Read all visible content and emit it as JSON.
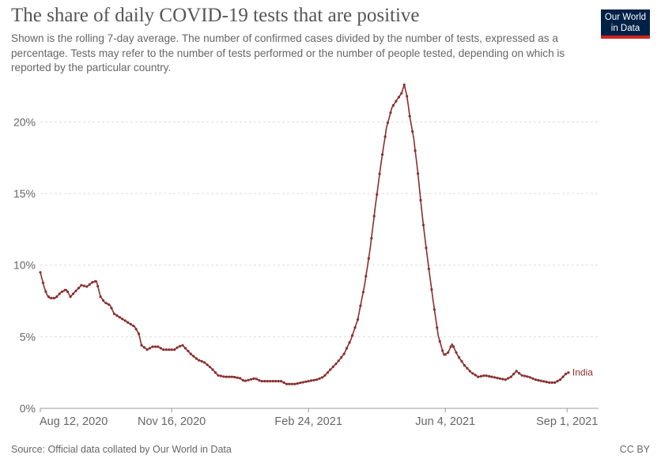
{
  "header": {
    "title": "The share of daily COVID-19 tests that are positive",
    "subtitle": "Shown is the rolling 7-day average. The number of confirmed cases divided by the number of tests, expressed as a percentage. Tests may refer to the number of tests performed or the number of people tested, depending on which is reported by the particular country."
  },
  "logo": {
    "line1": "Our World",
    "line2": "in Data"
  },
  "footer": {
    "source": "Source: Official data collated by Our World in Data",
    "license": "CC BY"
  },
  "colors": {
    "series": "#8a2e2e",
    "grid": "#dddddd",
    "axis": "#666666",
    "text": "#666666"
  },
  "chart_data": {
    "type": "line",
    "title": "The share of daily COVID-19 tests that are positive",
    "ylabel": "",
    "xlabel": "",
    "ylim": [
      0,
      23
    ],
    "xlim": [
      "2020-08-12",
      "2021-09-24"
    ],
    "y_ticks": [
      {
        "value": 0,
        "label": "0%"
      },
      {
        "value": 5,
        "label": "5%"
      },
      {
        "value": 10,
        "label": "10%"
      },
      {
        "value": 15,
        "label": "15%"
      },
      {
        "value": 20,
        "label": "20%"
      }
    ],
    "x_ticks": [
      {
        "date": "2020-08-12",
        "label": "Aug 12, 2020"
      },
      {
        "date": "2020-11-16",
        "label": "Nov 16, 2020"
      },
      {
        "date": "2021-02-24",
        "label": "Feb 24, 2021"
      },
      {
        "date": "2021-06-04",
        "label": "Jun 4, 2021"
      },
      {
        "date": "2021-09-01",
        "label": "Sep 1, 2021"
      }
    ],
    "grid": "horizontal-dashed",
    "legend": "end-of-line",
    "series": [
      {
        "name": "India",
        "points": [
          [
            "2020-08-12",
            9.5
          ],
          [
            "2020-08-15",
            8.4
          ],
          [
            "2020-08-17",
            7.9
          ],
          [
            "2020-08-19",
            7.7
          ],
          [
            "2020-08-23",
            7.7
          ],
          [
            "2020-08-27",
            8.1
          ],
          [
            "2020-08-31",
            8.3
          ],
          [
            "2020-09-03",
            7.8
          ],
          [
            "2020-09-07",
            8.2
          ],
          [
            "2020-09-11",
            8.6
          ],
          [
            "2020-09-15",
            8.5
          ],
          [
            "2020-09-19",
            8.8
          ],
          [
            "2020-09-22",
            8.9
          ],
          [
            "2020-09-25",
            7.8
          ],
          [
            "2020-09-28",
            7.4
          ],
          [
            "2020-10-02",
            7.2
          ],
          [
            "2020-10-05",
            6.6
          ],
          [
            "2020-10-10",
            6.3
          ],
          [
            "2020-10-15",
            6.0
          ],
          [
            "2020-10-20",
            5.7
          ],
          [
            "2020-10-23",
            5.2
          ],
          [
            "2020-10-25",
            4.4
          ],
          [
            "2020-10-29",
            4.1
          ],
          [
            "2020-11-02",
            4.3
          ],
          [
            "2020-11-06",
            4.3
          ],
          [
            "2020-11-10",
            4.1
          ],
          [
            "2020-11-14",
            4.1
          ],
          [
            "2020-11-18",
            4.1
          ],
          [
            "2020-11-21",
            4.3
          ],
          [
            "2020-11-24",
            4.4
          ],
          [
            "2020-11-30",
            3.8
          ],
          [
            "2020-12-05",
            3.4
          ],
          [
            "2020-12-10",
            3.2
          ],
          [
            "2020-12-15",
            2.8
          ],
          [
            "2020-12-20",
            2.3
          ],
          [
            "2020-12-25",
            2.2
          ],
          [
            "2020-12-31",
            2.2
          ],
          [
            "2021-01-05",
            2.1
          ],
          [
            "2021-01-08",
            1.9
          ],
          [
            "2021-01-12",
            2.0
          ],
          [
            "2021-01-16",
            2.1
          ],
          [
            "2021-01-20",
            1.9
          ],
          [
            "2021-01-25",
            1.9
          ],
          [
            "2021-01-30",
            1.9
          ],
          [
            "2021-02-04",
            1.9
          ],
          [
            "2021-02-08",
            1.7
          ],
          [
            "2021-02-14",
            1.7
          ],
          [
            "2021-02-19",
            1.8
          ],
          [
            "2021-02-24",
            1.9
          ],
          [
            "2021-03-02",
            2.0
          ],
          [
            "2021-03-07",
            2.2
          ],
          [
            "2021-03-12",
            2.7
          ],
          [
            "2021-03-17",
            3.2
          ],
          [
            "2021-03-22",
            3.8
          ],
          [
            "2021-03-27",
            4.8
          ],
          [
            "2021-04-01",
            6.2
          ],
          [
            "2021-04-06",
            8.6
          ],
          [
            "2021-04-10",
            11.1
          ],
          [
            "2021-04-14",
            14.2
          ],
          [
            "2021-04-18",
            17.1
          ],
          [
            "2021-04-22",
            19.6
          ],
          [
            "2021-04-26",
            21.0
          ],
          [
            "2021-04-30",
            21.6
          ],
          [
            "2021-05-03",
            22.0
          ],
          [
            "2021-05-05",
            22.6
          ],
          [
            "2021-05-07",
            21.8
          ],
          [
            "2021-05-09",
            20.4
          ],
          [
            "2021-05-12",
            18.8
          ],
          [
            "2021-05-15",
            16.4
          ],
          [
            "2021-05-18",
            13.6
          ],
          [
            "2021-05-21",
            11.2
          ],
          [
            "2021-05-24",
            9.0
          ],
          [
            "2021-05-27",
            6.9
          ],
          [
            "2021-05-30",
            5.0
          ],
          [
            "2021-06-03",
            3.7
          ],
          [
            "2021-06-06",
            3.9
          ],
          [
            "2021-06-09",
            4.5
          ],
          [
            "2021-06-13",
            3.7
          ],
          [
            "2021-06-18",
            3.0
          ],
          [
            "2021-06-23",
            2.5
          ],
          [
            "2021-06-28",
            2.2
          ],
          [
            "2021-07-03",
            2.3
          ],
          [
            "2021-07-08",
            2.2
          ],
          [
            "2021-07-13",
            2.1
          ],
          [
            "2021-07-18",
            2.0
          ],
          [
            "2021-07-22",
            2.2
          ],
          [
            "2021-07-26",
            2.6
          ],
          [
            "2021-07-30",
            2.3
          ],
          [
            "2021-08-04",
            2.2
          ],
          [
            "2021-08-09",
            2.0
          ],
          [
            "2021-08-14",
            1.9
          ],
          [
            "2021-08-19",
            1.8
          ],
          [
            "2021-08-23",
            1.8
          ],
          [
            "2021-08-27",
            2.0
          ],
          [
            "2021-08-31",
            2.4
          ],
          [
            "2021-09-02",
            2.5
          ]
        ]
      }
    ]
  }
}
